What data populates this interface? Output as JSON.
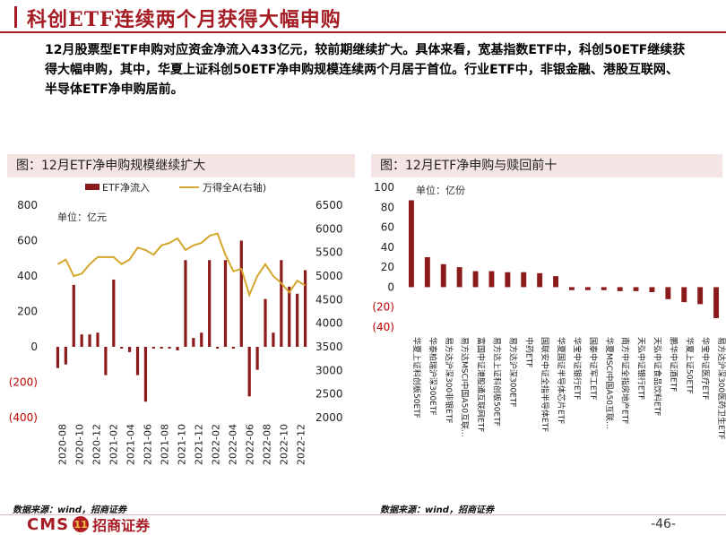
{
  "header": {
    "title": "科创ETF连续两个月获得大幅申购"
  },
  "summary": {
    "text": "12月股票型ETF申购对应资金净流入433亿元，较前期继续扩大。具体来看，宽基指数ETF中，科创50ETF继续获得大幅申购，其中，华夏上证科创50ETF净申购规模连续两个月居于首位。行业ETF中，非银金融、港股互联网、半导体ETF净申购居前。"
  },
  "left_panel": {
    "title": "图：12月ETF净申购规模继续扩大",
    "unit": "单位：亿元",
    "source": "数据来源：wind，招商证券"
  },
  "right_panel": {
    "title": "图：12月ETF净申购与赎回前十",
    "unit": "单位：亿份",
    "source": "数据来源：wind，招商证券"
  },
  "colors": {
    "brand": "#a51c24",
    "bar": "#8b1a1a",
    "line": "#d4a72c",
    "panel_bg": "#f5e4e4",
    "negative_tick": "#c00000"
  },
  "footer": {
    "logo_cms": "CMS",
    "logo_badge": "11",
    "logo_cn": "招商证券",
    "page": "-46-"
  },
  "chart_data": [
    {
      "type": "bar",
      "title": "12月ETF净申购规模继续扩大",
      "unit": "单位：亿元",
      "legend": [
        "ETF净流入",
        "万得全A(右轴)"
      ],
      "legend_position": "top",
      "x_tick_labels": [
        "2020-08",
        "2020-10",
        "2020-12",
        "2021-02",
        "2021-04",
        "2021-06",
        "2021-08",
        "2021-10",
        "2021-12",
        "2022-02",
        "2022-04",
        "2022-06",
        "2022-08",
        "2022-10",
        "2022-12"
      ],
      "y_left": {
        "ylim": [
          -400,
          800
        ],
        "ticks": [
          800,
          600,
          400,
          200,
          0,
          -200,
          -400
        ],
        "tick_labels": [
          "800",
          "600",
          "400",
          "200",
          "0",
          "(200)",
          "(400)"
        ]
      },
      "y_right": {
        "ylim": [
          2000,
          6500
        ],
        "ticks": [
          6500,
          6000,
          5500,
          5000,
          4500,
          4000,
          3500,
          3000,
          2500,
          2000
        ]
      },
      "series": [
        {
          "name": "ETF净流入",
          "type": "bar",
          "axis": "left",
          "values": [
            -120,
            -100,
            350,
            70,
            70,
            80,
            -160,
            380,
            -10,
            -30,
            -160,
            -310,
            -10,
            -10,
            -10,
            -20,
            490,
            50,
            80,
            490,
            -10,
            490,
            -10,
            600,
            -280,
            -130,
            270,
            80,
            490,
            340,
            300,
            433
          ]
        },
        {
          "name": "万得全A(右轴)",
          "type": "line",
          "axis": "right",
          "values": [
            5250,
            5350,
            5000,
            5050,
            5250,
            5400,
            5400,
            5400,
            5250,
            5350,
            5600,
            5550,
            5450,
            5650,
            5700,
            5800,
            5550,
            5650,
            5700,
            5850,
            5900,
            5450,
            5100,
            5150,
            4600,
            5000,
            5250,
            5000,
            4850,
            4650,
            4900,
            4800
          ]
        }
      ]
    },
    {
      "type": "bar",
      "title": "12月ETF净申购与赎回前十",
      "unit": "单位：亿份",
      "ylim": [
        -40,
        100
      ],
      "y_ticks": [
        100,
        80,
        60,
        40,
        20,
        0,
        -20,
        -40
      ],
      "y_tick_labels": [
        "100",
        "80",
        "60",
        "40",
        "20",
        "0",
        "(20)",
        "(40)"
      ],
      "categories": [
        "华夏上证科创板50ETF",
        "华泰柏瑞沪深300ETF",
        "易方达沪深300非银ETF",
        "易方达MSCI中国A50互联...",
        "富国中证港股通互联网ETF",
        "易方达上证科创板50ETF",
        "易方达沪深300ETF",
        "中药ETF",
        "国联安中证全指半导体ETF",
        "华夏国证半导体芯片ETF",
        "华宝中证银行ETF",
        "国泰中证军工ETF",
        "华夏MSCI中国A50互联...",
        "南方中证全指房地产ETF",
        "天弘中证银行ETF",
        "天弘中证食品饮料ETF",
        "鹏华中证酒ETF",
        "华夏上证50ETF",
        "华宝中证医疗ETF",
        "易方达沪深300医药卫生ETF"
      ],
      "values": [
        87,
        30,
        23,
        20,
        16,
        16,
        15,
        15,
        14,
        11,
        -3,
        -3,
        -3,
        -4,
        -4,
        -5,
        -12,
        -15,
        -17,
        -31
      ]
    }
  ]
}
